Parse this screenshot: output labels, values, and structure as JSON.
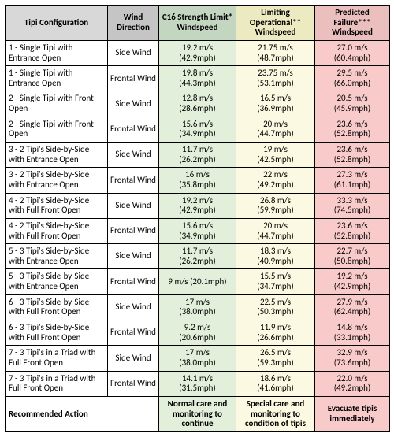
{
  "headers": {
    "config": "Tipi Configuration",
    "wind": "Wind Direction",
    "c16": "C16 Strength Limit* Windspeed",
    "limit": "Limiting Operational** Windspeed",
    "fail": "Predicted Failure*** Windspeed"
  },
  "colors": {
    "hdr_config": "#d8d8d8",
    "hdr_wind": "#c5c5c5",
    "hdr_c16": "#c3d7c0",
    "hdr_limit": "#ebeac0",
    "hdr_fail": "#ecbfbf",
    "cell_c16": "#e2efda",
    "cell_limit": "#fbf9e1",
    "cell_fail": "#f8caca",
    "border": "#000000",
    "background": "#ffffff"
  },
  "rows": [
    {
      "config": "1 - Single Tipi with Entrance Open",
      "wind": "Side Wind",
      "c16_ms": "19.2 m/s",
      "c16_mph": "(42.9mph)",
      "lim_ms": "21.75 m/s",
      "lim_mph": "(48.7mph)",
      "fail_ms": "27.0 m/s",
      "fail_mph": "(60.4mph)"
    },
    {
      "config": "1 - Single Tipi with Entrance Open",
      "wind": "Frontal Wind",
      "c16_ms": "19.8 m/s",
      "c16_mph": "(44.3mph)",
      "lim_ms": "23.75 m/s",
      "lim_mph": "(53.1mph)",
      "fail_ms": "29.5 m/s",
      "fail_mph": "(66.0mph)"
    },
    {
      "config": "2 - Single Tipi with Front Open",
      "wind": "Side Wind",
      "c16_ms": "12.8 m/s",
      "c16_mph": "(28.6mph)",
      "lim_ms": "16.5 m/s",
      "lim_mph": "(36.9mph)",
      "fail_ms": "20.5 m/s",
      "fail_mph": "(45.9mph)"
    },
    {
      "config": "2 - Single Tipi with Front Open",
      "wind": "Frontal Wind",
      "c16_ms": "15.6 m/s",
      "c16_mph": "(34.9mph)",
      "lim_ms": "20 m/s",
      "lim_mph": "(44.7mph)",
      "fail_ms": "23.6 m/s",
      "fail_mph": "(52.8mph)"
    },
    {
      "config": "3 - 2 Tipi's Side-by-Side with Entrance Open",
      "wind": "Side Wind",
      "c16_ms": "11.7 m/s",
      "c16_mph": "(26.2mph)",
      "lim_ms": "19 m/s",
      "lim_mph": "(42.5mph)",
      "fail_ms": "23.6 m/s",
      "fail_mph": "(52.8mph)"
    },
    {
      "config": "3 - 2 Tipi's Side-by-Side with Entrance Open",
      "wind": "Frontal Wind",
      "c16_ms": "16 m/s",
      "c16_mph": "(35.8mph)",
      "lim_ms": "22 m/s",
      "lim_mph": "(49.2mph)",
      "fail_ms": "27.3 m/s",
      "fail_mph": "(61.1mph)"
    },
    {
      "config": "4 - 2 Tipi's Side-by-Side with Full Front Open",
      "wind": "Side Wind",
      "c16_ms": "19.2 m/s",
      "c16_mph": "(42.9mph)",
      "lim_ms": "26.8 m/s",
      "lim_mph": "(59.9mph)",
      "fail_ms": "33.3 m/s",
      "fail_mph": "(74.5mph)"
    },
    {
      "config": "4 - 2 Tipi's Side-by-Side with Full Front Open",
      "wind": "Frontal Wind",
      "c16_ms": "15.6 m/s",
      "c16_mph": "(34.9mph)",
      "lim_ms": "20 m/s",
      "lim_mph": "(44.7mph)",
      "fail_ms": "23.6 m/s",
      "fail_mph": "(52.8mph)"
    },
    {
      "config": "5 - 3 Tipi's Side-by-Side with Entrance Open",
      "wind": "Side Wind",
      "c16_ms": "11.7 m/s",
      "c16_mph": "(26.2mph)",
      "lim_ms": "18.3 m/s",
      "lim_mph": "(40.9mph)",
      "fail_ms": "22.7 m/s",
      "fail_mph": "(50.8mph)"
    },
    {
      "config": "5 - 3 Tipi's Side-by-Side with Entrance Open",
      "wind": "Frontal Wind",
      "c16_single": "9 m/s (20.1mph)",
      "lim_ms": "15.5 m/s",
      "lim_mph": "(34.7mph)",
      "fail_ms": "19.2 m/s",
      "fail_mph": "(42.9mph)"
    },
    {
      "config": "6 - 3 Tipi's Side-by-Side with Full Front Open",
      "wind": "Side Wind",
      "c16_ms": "17 m/s",
      "c16_mph": "(38.0mph)",
      "lim_ms": "22.5 m/s",
      "lim_mph": "(50.3mph)",
      "fail_ms": "27.9 m/s",
      "fail_mph": "(62.4mph)"
    },
    {
      "config": "6 - 3 Tipi's Side-by-Side with Full Front Open",
      "wind": "Frontal Wind",
      "c16_ms": "9.2 m/s",
      "c16_mph": "(20.6mph)",
      "lim_ms": "11.9 m/s",
      "lim_mph": "(26.6mph)",
      "fail_ms": "14.8 m/s",
      "fail_mph": "(33.1mph)"
    },
    {
      "config": "7 - 3 Tipi's in a Triad with Full Front Open",
      "wind": "Side Wind",
      "c16_ms": "17 m/s",
      "c16_mph": "(38.0mph)",
      "lim_ms": "26.5 m/s",
      "lim_mph": "(59.3mph)",
      "fail_ms": "32.9 m/s",
      "fail_mph": "(73.6mph)"
    },
    {
      "config": "7 - 3 Tipi's in a Triad with Full Front Open",
      "wind": "Frontal Wind",
      "c16_ms": "14.1 m/s",
      "c16_mph": "(31.5mph)",
      "lim_ms": "18.6 m/s",
      "lim_mph": "(41.6mph)",
      "fail_ms": "22.0 m/s",
      "fail_mph": "(49.2mph)"
    }
  ],
  "recommended": {
    "label": "Recommended Action",
    "c16": "Normal care and monitoring to continue",
    "limit": "Special care and monitoring to condition of tipis",
    "fail": "Evacuate tipis immediately"
  }
}
